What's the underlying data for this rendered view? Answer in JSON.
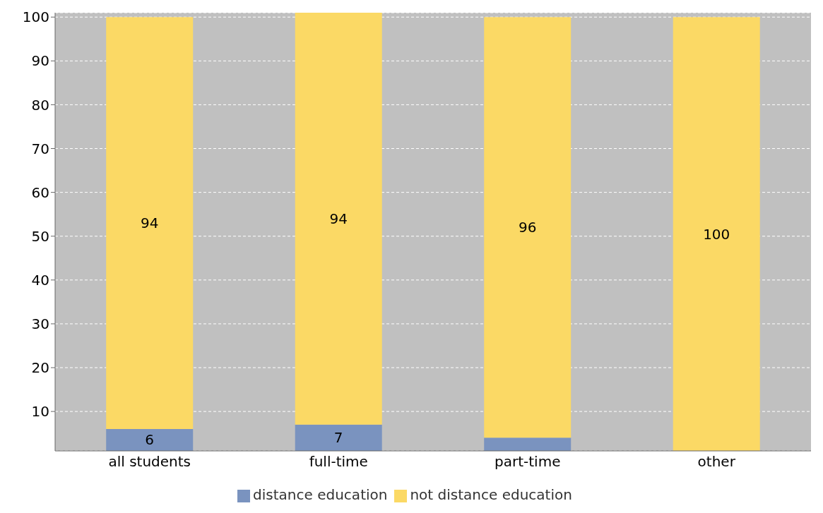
{
  "chart_data": {
    "type": "bar",
    "stacked": true,
    "categories": [
      "all students",
      "full-time",
      "part-time",
      "other"
    ],
    "series": [
      {
        "name": "distance education",
        "color": "#7a93bf",
        "values": [
          6,
          7,
          4,
          null
        ],
        "value_labels": [
          "6",
          "7",
          null,
          null
        ]
      },
      {
        "name": "not distance education",
        "color": "#fbd965",
        "values": [
          94,
          94,
          96,
          100
        ],
        "value_labels": [
          "94",
          "94",
          "96",
          "100"
        ]
      }
    ],
    "ylim": [
      1,
      101
    ],
    "yticks": [
      10,
      20,
      30,
      40,
      50,
      60,
      70,
      80,
      90,
      100
    ],
    "grid": "y",
    "legend": "bottom"
  }
}
